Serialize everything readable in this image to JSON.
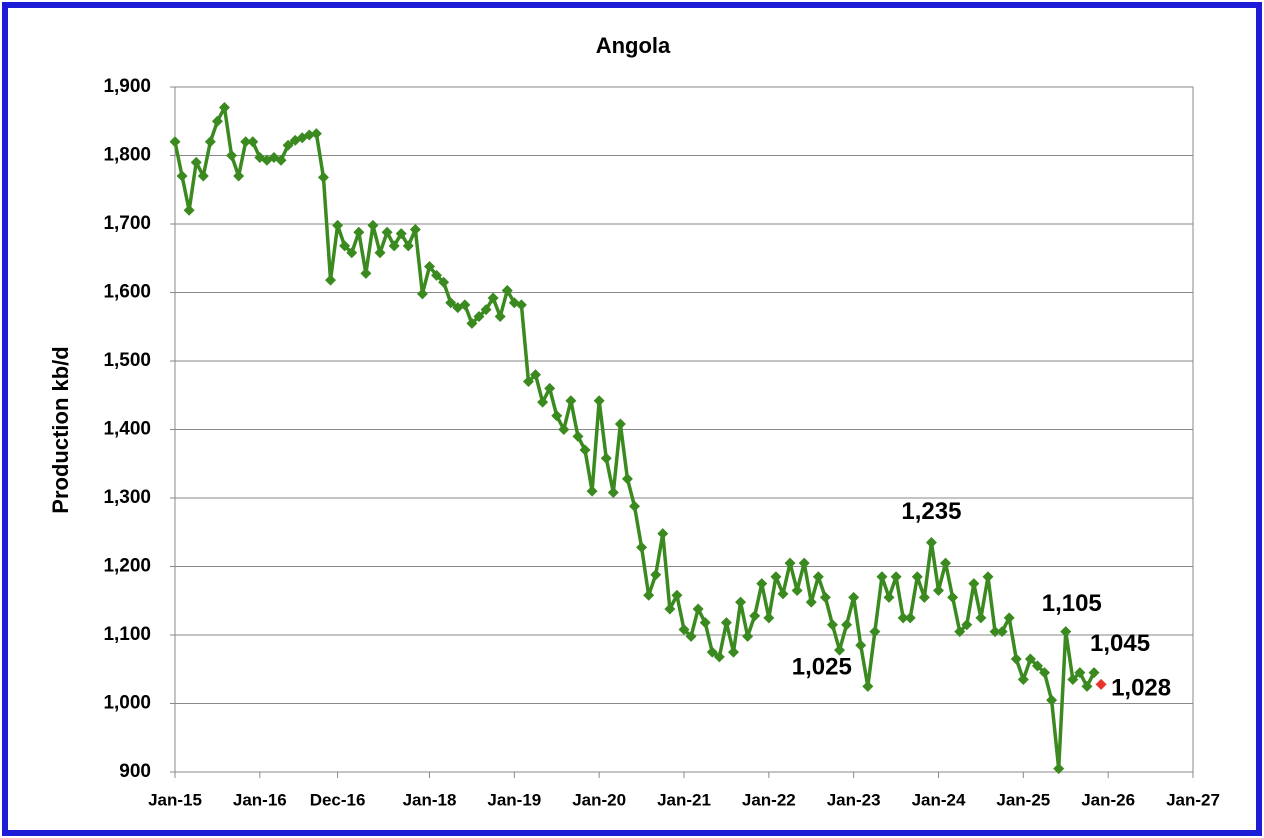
{
  "chart_data": {
    "type": "line",
    "title": "Angola",
    "y_label": "Production kb/d",
    "xlim": [
      "Jan-15",
      "Jan-27"
    ],
    "xticks": [
      "Jan-15",
      "Jan-16",
      "Dec-16",
      "Jan-18",
      "Jan-19",
      "Jan-20",
      "Jan-21",
      "Jan-22",
      "Jan-23",
      "Jan-24",
      "Jan-25",
      "Jan-26",
      "Jan-27"
    ],
    "ylim": [
      900,
      1900
    ],
    "yticks": [
      900,
      {
        "value": 1000,
        "label": "1,000"
      },
      {
        "value": 1100,
        "label": "1,100"
      },
      {
        "value": 1200,
        "label": "1,200"
      },
      {
        "value": 1300,
        "label": "1,300"
      },
      {
        "value": 1400,
        "label": "1,400"
      },
      {
        "value": 1500,
        "label": "1,500"
      },
      {
        "value": 1600,
        "label": "1,600"
      },
      {
        "value": 1700,
        "label": "1,700"
      },
      {
        "value": 1800,
        "label": "1,800"
      },
      {
        "value": 1900,
        "label": "1,900"
      }
    ],
    "grid": true,
    "series": [
      {
        "color": "#3a8a1f",
        "x": [
          "Jan-15",
          "Feb-15",
          "Mar-15",
          "Apr-15",
          "May-15",
          "Jun-15",
          "Jul-15",
          "Aug-15",
          "Sep-15",
          "Oct-15",
          "Nov-15",
          "Dec-15",
          "Jan-16",
          "Feb-16",
          "Mar-16",
          "Apr-16",
          "May-16",
          "Jun-16",
          "Jul-16",
          "Aug-16",
          "Sep-16",
          "Oct-16",
          "Nov-16",
          "Dec-16",
          "Jan-17",
          "Feb-17",
          "Mar-17",
          "Apr-17",
          "May-17",
          "Jun-17",
          "Jul-17",
          "Aug-17",
          "Sep-17",
          "Oct-17",
          "Nov-17",
          "Dec-17",
          "Jan-18",
          "Feb-18",
          "Mar-18",
          "Apr-18",
          "May-18",
          "Jun-18",
          "Jul-18",
          "Aug-18",
          "Sep-18",
          "Oct-18",
          "Nov-18",
          "Dec-18",
          "Jan-19",
          "Feb-19",
          "Mar-19",
          "Apr-19",
          "May-19",
          "Jun-19",
          "Jul-19",
          "Aug-19",
          "Sep-19",
          "Oct-19",
          "Nov-19",
          "Dec-19",
          "Jan-20",
          "Feb-20",
          "Mar-20",
          "Apr-20",
          "May-20",
          "Jun-20",
          "Jul-20",
          "Aug-20",
          "Sep-20",
          "Oct-20",
          "Nov-20",
          "Dec-20",
          "Jan-21",
          "Feb-21",
          "Mar-21",
          "Apr-21",
          "May-21",
          "Jun-21",
          "Jul-21",
          "Aug-21",
          "Sep-21",
          "Oct-21",
          "Nov-21",
          "Dec-21",
          "Jan-22",
          "Feb-22",
          "Mar-22",
          "Apr-22",
          "May-22",
          "Jun-22",
          "Jul-22",
          "Aug-22",
          "Sep-22",
          "Oct-22",
          "Nov-22",
          "Dec-22",
          "Jan-23",
          "Feb-23",
          "Mar-23",
          "Apr-23",
          "May-23",
          "Jun-23",
          "Jul-23",
          "Aug-23",
          "Sep-23",
          "Oct-23",
          "Nov-23",
          "Dec-23",
          "Jan-24",
          "Feb-24",
          "Mar-24",
          "Apr-24",
          "May-24",
          "Jun-24",
          "Jul-24",
          "Aug-24",
          "Sep-24",
          "Oct-24",
          "Nov-24",
          "Dec-24",
          "Jan-25",
          "Feb-25",
          "Mar-25",
          "Apr-25",
          "May-25",
          "Jun-25",
          "Jul-25",
          "Aug-25",
          "Sep-25",
          "Oct-25",
          "Nov-25"
        ],
        "values": [
          1820,
          1770,
          1720,
          1790,
          1770,
          1820,
          1850,
          1870,
          1800,
          1770,
          1820,
          1820,
          1797,
          1793,
          1797,
          1793,
          1815,
          1822,
          1826,
          1830,
          1832,
          1768,
          1618,
          1698,
          1668,
          1658,
          1688,
          1628,
          1698,
          1658,
          1688,
          1668,
          1686,
          1668,
          1692,
          1598,
          1638,
          1625,
          1615,
          1585,
          1578,
          1582,
          1555,
          1565,
          1575,
          1592,
          1565,
          1603,
          1585,
          1582,
          1470,
          1480,
          1440,
          1460,
          1420,
          1400,
          1442,
          1390,
          1370,
          1310,
          1442,
          1358,
          1308,
          1408,
          1328,
          1288,
          1228,
          1158,
          1188,
          1248,
          1138,
          1158,
          1108,
          1098,
          1138,
          1118,
          1075,
          1068,
          1118,
          1075,
          1148,
          1098,
          1128,
          1175,
          1125,
          1185,
          1160,
          1205,
          1165,
          1205,
          1148,
          1185,
          1155,
          1115,
          1078,
          1115,
          1155,
          1085,
          1025,
          1105,
          1185,
          1155,
          1185,
          1125,
          1125,
          1185,
          1155,
          1235,
          1165,
          1205,
          1155,
          1105,
          1115,
          1175,
          1125,
          1185,
          1105,
          1105,
          1125,
          1065,
          1035,
          1065,
          1055,
          1045,
          1005,
          905,
          1105,
          1035,
          1045,
          1025,
          1045
        ]
      },
      {
        "color": "#e8342a",
        "x": [
          "Dec-25"
        ],
        "values": [
          1028
        ]
      }
    ],
    "annotations": [
      {
        "label": "1,235",
        "x": "Dec-23",
        "value": 1235,
        "color": "#000000"
      },
      {
        "label": "1,025",
        "x": "Mar-23",
        "value": 1025,
        "color": "#000000"
      },
      {
        "label": "1,105",
        "x": "Jul-25",
        "value": 1105,
        "color": "#3a8a1f"
      },
      {
        "label": "1,045",
        "x": "Nov-25",
        "value": 1045,
        "color": "#3a8a1f"
      },
      {
        "label": "1,028",
        "x": "Dec-25",
        "value": 1028,
        "color": "#e8342a"
      }
    ]
  }
}
